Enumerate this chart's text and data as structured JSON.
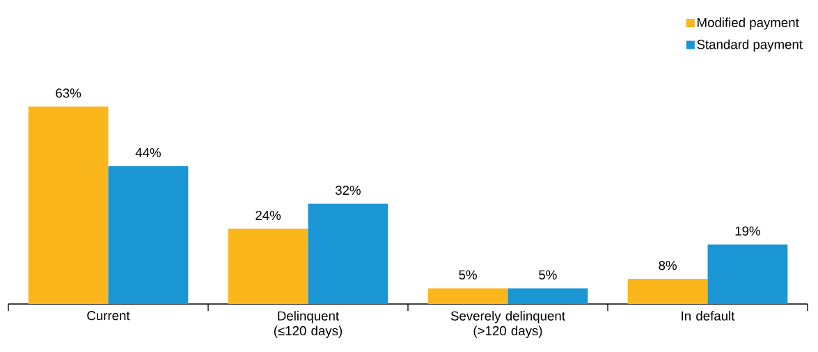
{
  "chart_data": {
    "type": "bar",
    "categories": [
      "Current",
      "Delinquent (≤120 days)",
      "Severely delinquent (>120 days)",
      "In default"
    ],
    "series": [
      {
        "name": "Modified payment",
        "color": "#fbb61b",
        "values": [
          63,
          24,
          5,
          8
        ],
        "value_labels": [
          "63%",
          "24%",
          "5%",
          "8%"
        ]
      },
      {
        "name": "Standard payment",
        "color": "#1a96d4",
        "values": [
          44,
          32,
          5,
          19
        ],
        "value_labels": [
          "44%",
          "32%",
          "5%",
          "19%"
        ]
      }
    ],
    "legend": "top right"
  }
}
